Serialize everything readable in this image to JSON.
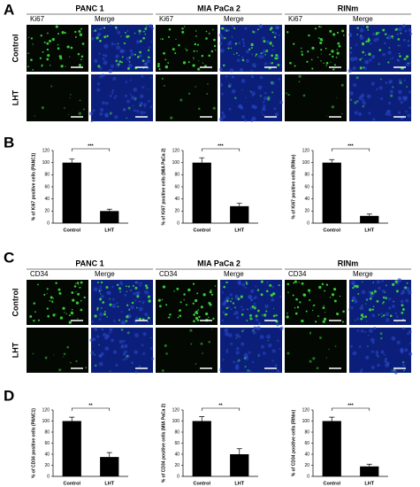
{
  "panels": {
    "A": {
      "label": "A",
      "rows": [
        "Control",
        "LHT"
      ],
      "groups": [
        {
          "title": "PANC 1",
          "channels": [
            "Ki67",
            "Merge"
          ]
        },
        {
          "title": "MIA PaCa 2",
          "channels": [
            "Ki67",
            "Merge"
          ]
        },
        {
          "title": "RINm",
          "channels": [
            "Ki67",
            "Merge"
          ]
        }
      ]
    },
    "B": {
      "label": "B"
    },
    "C": {
      "label": "C",
      "rows": [
        "Control",
        "LHT"
      ],
      "groups": [
        {
          "title": "PANC 1",
          "channels": [
            "CD34",
            "Merge"
          ]
        },
        {
          "title": "MIA PaCa 2",
          "channels": [
            "CD34",
            "Merge"
          ]
        },
        {
          "title": "RINm",
          "channels": [
            "CD34",
            "Merge"
          ]
        }
      ]
    },
    "D": {
      "label": "D"
    }
  },
  "chart_data": [
    {
      "type": "bar",
      "ylabel": "% of Ki67 positive cells (PANC1)",
      "categories": [
        "Control",
        "LHT"
      ],
      "values": [
        100,
        20
      ],
      "errors": [
        6,
        3
      ],
      "color": "#000000",
      "ylim": [
        0,
        120
      ],
      "yticks": [
        0,
        20,
        40,
        60,
        80,
        100,
        120
      ],
      "significance": "***"
    },
    {
      "type": "bar",
      "ylabel": "% of Ki67 positive cells (MIA PaCa 2)",
      "categories": [
        "Control",
        "LHT"
      ],
      "values": [
        100,
        28
      ],
      "errors": [
        8,
        5
      ],
      "color": "#000000",
      "ylim": [
        0,
        120
      ],
      "yticks": [
        0,
        20,
        40,
        60,
        80,
        100,
        120
      ],
      "significance": "***"
    },
    {
      "type": "bar",
      "ylabel": "% of Ki67 positive cells (RINm)",
      "categories": [
        "Control",
        "LHT"
      ],
      "values": [
        100,
        12
      ],
      "errors": [
        5,
        3
      ],
      "color": "#000000",
      "ylim": [
        0,
        120
      ],
      "yticks": [
        0,
        20,
        40,
        60,
        80,
        100,
        120
      ],
      "significance": "***"
    },
    {
      "type": "bar",
      "ylabel": "% of CD34 positive cells (PANC1)",
      "categories": [
        "Control",
        "LHT"
      ],
      "values": [
        100,
        35
      ],
      "errors": [
        7,
        8
      ],
      "color": "#000000",
      "ylim": [
        0,
        120
      ],
      "yticks": [
        0,
        20,
        40,
        60,
        80,
        100,
        120
      ],
      "significance": "**"
    },
    {
      "type": "bar",
      "ylabel": "% of CD34 positive cells (MIA PaCa 2)",
      "categories": [
        "Control",
        "LHT"
      ],
      "values": [
        100,
        40
      ],
      "errors": [
        8,
        10
      ],
      "color": "#000000",
      "ylim": [
        0,
        120
      ],
      "yticks": [
        0,
        20,
        40,
        60,
        80,
        100,
        120
      ],
      "significance": "**"
    },
    {
      "type": "bar",
      "ylabel": "% of CD34 positive cells (RINm)",
      "categories": [
        "Control",
        "LHT"
      ],
      "values": [
        100,
        18
      ],
      "errors": [
        7,
        4
      ],
      "color": "#000000",
      "ylim": [
        0,
        120
      ],
      "yticks": [
        0,
        20,
        40,
        60,
        80,
        100,
        120
      ],
      "significance": "***"
    }
  ]
}
